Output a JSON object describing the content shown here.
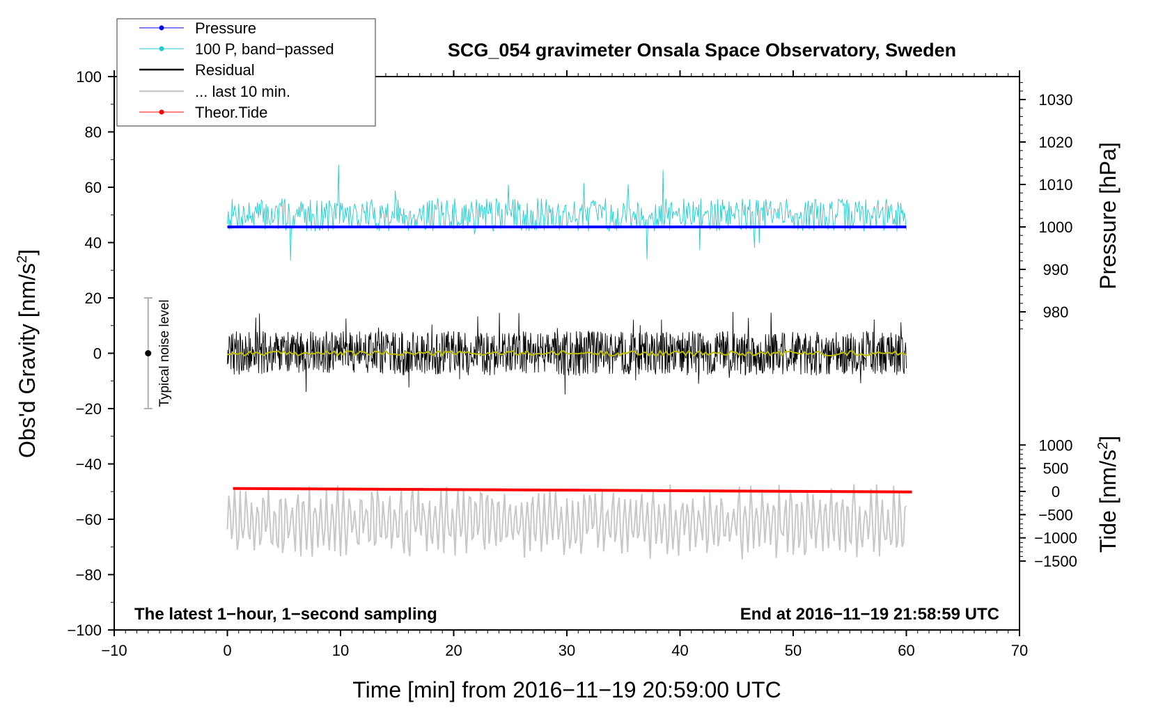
{
  "chart_data": {
    "type": "line",
    "title": "SCG_054 gravimeter Onsala Space Observatory, Sweden",
    "xlabel": "Time [min] from 2016−11−19 20:59:00 UTC",
    "ylabel": "Obs'd Gravity [nm/s",
    "ylabel_sup": "2",
    "ylabel_end": "]",
    "pressure_axis_label": "Pressure [hPa]",
    "tide_axis_label": "Tide [nm/s",
    "tide_axis_sup": "2",
    "tide_axis_end": "]",
    "xlim": [
      -10,
      70
    ],
    "ylim": [
      -100,
      100
    ],
    "x_ticks": [
      "−10",
      "0",
      "10",
      "20",
      "30",
      "40",
      "50",
      "60",
      "70"
    ],
    "y_ticks": [
      "−100",
      "−80",
      "−60",
      "−40",
      "−20",
      "0",
      "20",
      "40",
      "60",
      "80",
      "100"
    ],
    "pressure_ticks": [
      "980",
      "990",
      "1000",
      "1010",
      "1020",
      "1030"
    ],
    "tide_ticks": [
      "−1500",
      "−1000",
      "−500",
      "0",
      "500",
      "1000"
    ],
    "notes": {
      "left": "The latest 1−hour, 1−second sampling",
      "right": "End at 2016−11−19 21:58:59 UTC"
    },
    "noise_bar": {
      "label": "Typical noise level",
      "x": -7,
      "center": 0,
      "low": -20,
      "high": 20
    },
    "series": [
      {
        "name": "Pressure",
        "color": "#0000ff",
        "x": [
          0,
          10,
          20,
          30,
          40,
          50,
          60
        ],
        "values": [
          1000.0,
          1000.0,
          1000.0,
          1000.0,
          1000.0,
          1000.0,
          1000.0
        ],
        "units": "hPa"
      },
      {
        "name": "100 P, band−passed",
        "color": "#22cccc",
        "center": 50,
        "amplitude": 6,
        "x_range": [
          0,
          60
        ],
        "units": "nm/s²"
      },
      {
        "name": "Residual",
        "color": "#000000",
        "center": 0,
        "amplitude": 8,
        "x_range": [
          0,
          60
        ],
        "units": "nm/s²"
      },
      {
        "name": "... last 10 min.",
        "color": "#c8c8c8",
        "x_range": [
          0,
          60
        ],
        "units": "nm/s²"
      },
      {
        "name": "Theor.Tide",
        "color": "#ff0000",
        "x": [
          0.5,
          60.5
        ],
        "values": [
          65,
          -10
        ],
        "units": "nm/s²"
      }
    ]
  }
}
